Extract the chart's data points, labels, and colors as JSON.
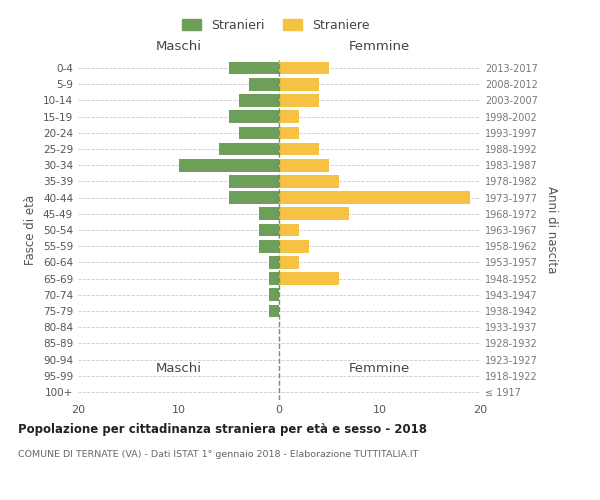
{
  "age_groups": [
    "100+",
    "95-99",
    "90-94",
    "85-89",
    "80-84",
    "75-79",
    "70-74",
    "65-69",
    "60-64",
    "55-59",
    "50-54",
    "45-49",
    "40-44",
    "35-39",
    "30-34",
    "25-29",
    "20-24",
    "15-19",
    "10-14",
    "5-9",
    "0-4"
  ],
  "birth_years": [
    "≤ 1917",
    "1918-1922",
    "1923-1927",
    "1928-1932",
    "1933-1937",
    "1938-1942",
    "1943-1947",
    "1948-1952",
    "1953-1957",
    "1958-1962",
    "1963-1967",
    "1968-1972",
    "1973-1977",
    "1978-1982",
    "1983-1987",
    "1988-1992",
    "1993-1997",
    "1998-2002",
    "2003-2007",
    "2008-2012",
    "2013-2017"
  ],
  "maschi": [
    0,
    0,
    0,
    0,
    0,
    1,
    1,
    1,
    1,
    2,
    2,
    2,
    5,
    5,
    10,
    6,
    4,
    5,
    4,
    3,
    5
  ],
  "femmine": [
    0,
    0,
    0,
    0,
    0,
    0,
    0,
    6,
    2,
    3,
    2,
    7,
    19,
    6,
    5,
    4,
    2,
    2,
    4,
    4,
    5
  ],
  "color_maschi": "#6d9e5a",
  "color_femmine": "#f5c243",
  "title": "Popolazione per cittadinanza straniera per età e sesso - 2018",
  "subtitle": "COMUNE DI TERNATE (VA) - Dati ISTAT 1° gennaio 2018 - Elaborazione TUTTITALIA.IT",
  "ylabel_left": "Fasce di età",
  "ylabel_right": "Anni di nascita",
  "xlabel_left": "Maschi",
  "xlabel_right": "Femmine",
  "legend_maschi": "Stranieri",
  "legend_femmine": "Straniere",
  "xlim": 20,
  "bg_color": "#ffffff",
  "grid_color": "#cccccc",
  "dashed_center_color": "#888866"
}
